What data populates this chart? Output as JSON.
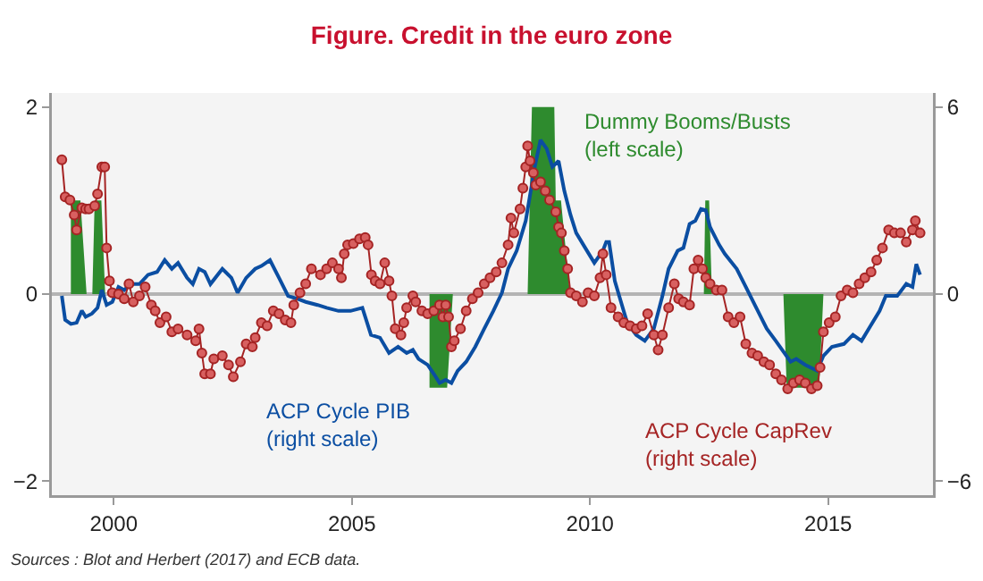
{
  "chart_data": {
    "type": "line",
    "title": "Figure. Credit in the euro zone",
    "annotations": [
      "Sources : Blot and Herbert (2017) and ECB data."
    ],
    "xlim": [
      1998.7,
      2017.2
    ],
    "xticks": [
      2000,
      2005,
      2010,
      2015
    ],
    "ylim": [
      -2.15,
      2.15
    ],
    "yticks": [
      -2,
      0,
      2
    ],
    "y2lim": [
      -6.45,
      6.45
    ],
    "y2ticks": [
      -6,
      0,
      6
    ],
    "grid": false,
    "legend": false,
    "ref_lines": [
      {
        "axis": "y",
        "value": 0,
        "color": "#b4b4b4"
      }
    ],
    "series": [
      {
        "name": "Dummy Booms/Busts\n(left scale)",
        "type": "area",
        "axis": "y",
        "color": "#2e8b2e",
        "marker": "none",
        "x": [
          1999.1,
          1999.1,
          1999.3,
          1999.43,
          1999.55,
          1999.6,
          1999.74,
          1999.82,
          2003,
          2006.63,
          2006.63,
          2007.0,
          2007.12,
          2008,
          2008.69,
          2008.78,
          2009.25,
          2009.28,
          2009.39,
          2009.58,
          2011,
          2012.39,
          2012.42,
          2012.5,
          2012.56,
          2013,
          2014.06,
          2014.13,
          2014.81,
          2014.9
        ],
        "values": [
          0,
          1,
          1,
          0,
          0,
          1,
          1,
          0,
          null,
          0,
          -1,
          -1,
          0,
          null,
          0,
          2,
          2,
          1,
          1,
          0,
          null,
          0,
          1,
          1,
          0,
          null,
          0,
          -1,
          -1,
          0
        ]
      },
      {
        "name": "ACP Cycle PIB\n(right scale)",
        "axis": "y2",
        "color": "#0b4ea2",
        "marker": "none",
        "x": [
          1998.91,
          1998.98,
          1999.1,
          1999.22,
          1999.33,
          1999.41,
          1999.54,
          1999.66,
          1999.75,
          1999.85,
          1999.97,
          2000.1,
          2000.22,
          2000.35,
          2000.54,
          2000.72,
          2000.91,
          2001.07,
          2001.22,
          2001.35,
          2001.54,
          2001.66,
          2001.79,
          2001.91,
          2002.03,
          2002.28,
          2002.47,
          2002.6,
          2002.78,
          2002.97,
          2003.1,
          2003.28,
          2003.47,
          2003.66,
          2003.85,
          2004.03,
          2004.28,
          2004.47,
          2004.72,
          2004.97,
          2005.22,
          2005.4,
          2005.59,
          2005.78,
          2005.97,
          2006.15,
          2006.28,
          2006.4,
          2006.59,
          2006.72,
          2006.84,
          2006.97,
          2007.09,
          2007.22,
          2007.4,
          2007.59,
          2007.78,
          2007.97,
          2008.15,
          2008.28,
          2008.46,
          2008.65,
          2008.84,
          2008.96,
          2009.09,
          2009.21,
          2009.34,
          2009.46,
          2009.59,
          2009.71,
          2009.9,
          2010.09,
          2010.27,
          2010.34,
          2010.4,
          2010.52,
          2010.65,
          2010.78,
          2010.97,
          2011.15,
          2011.34,
          2011.52,
          2011.65,
          2011.84,
          2011.96,
          2012.09,
          2012.21,
          2012.33,
          2012.43,
          2012.52,
          2012.71,
          2012.83,
          2013.08,
          2013.27,
          2013.46,
          2013.71,
          2013.9,
          2014.08,
          2014.21,
          2014.33,
          2014.52,
          2014.77,
          2014.9,
          2015.08,
          2015.33,
          2015.52,
          2015.7,
          2015.89,
          2016.08,
          2016.21,
          2016.45,
          2016.64,
          2016.77,
          2016.85,
          2016.93
        ],
        "values": [
          -0.06,
          -0.83,
          -0.96,
          -0.92,
          -0.53,
          -0.73,
          -0.63,
          -0.44,
          0.13,
          -0.35,
          -0.25,
          0.23,
          0.13,
          0.32,
          0.32,
          0.62,
          0.71,
          1.09,
          0.81,
          1.0,
          0.52,
          0.32,
          0.81,
          0.71,
          0.32,
          0.81,
          0.52,
          0.04,
          0.52,
          0.81,
          0.9,
          1.09,
          0.52,
          -0.06,
          -0.15,
          -0.25,
          -0.35,
          -0.44,
          -0.54,
          -0.54,
          -0.44,
          -1.31,
          -1.4,
          -1.89,
          -1.69,
          -1.89,
          -1.79,
          -2.08,
          -2.27,
          -2.56,
          -2.85,
          -2.75,
          -2.85,
          -2.46,
          -2.17,
          -1.69,
          -1.11,
          -0.54,
          0.04,
          0.81,
          1.39,
          2.35,
          4.08,
          4.94,
          4.66,
          4.08,
          4.27,
          3.31,
          2.54,
          1.96,
          1.48,
          1.0,
          1.39,
          1.67,
          1.67,
          0.42,
          -0.25,
          -0.92,
          -1.31,
          -1.5,
          -1.11,
          -0.06,
          0.81,
          1.39,
          1.48,
          2.25,
          2.35,
          2.73,
          2.69,
          2.15,
          1.58,
          1.29,
          0.81,
          0.23,
          -0.35,
          -1.11,
          -1.5,
          -1.89,
          -2.17,
          -2.08,
          -2.27,
          -2.46,
          -1.98,
          -1.69,
          -1.6,
          -1.31,
          -1.5,
          -1.02,
          -0.54,
          -0.06,
          -0.06,
          0.33,
          0.23,
          0.96,
          0.62
        ]
      },
      {
        "name": "ACP Cycle CapRev\n(right scale)",
        "axis": "y2",
        "color": "#a52424",
        "marker": "circle",
        "x": [
          1998.91,
          1998.98,
          1999.08,
          1999.17,
          1999.22,
          1999.33,
          1999.41,
          1999.48,
          1999.6,
          1999.66,
          1999.75,
          1999.81,
          1999.85,
          1999.91,
          1999.97,
          2000.1,
          2000.22,
          2000.32,
          2000.41,
          2000.54,
          2000.66,
          2000.79,
          2000.87,
          2000.97,
          2001.1,
          2001.22,
          2001.35,
          2001.54,
          2001.72,
          2001.79,
          2001.85,
          2001.91,
          2002.03,
          2002.1,
          2002.28,
          2002.41,
          2002.51,
          2002.66,
          2002.78,
          2002.91,
          2002.97,
          2003.1,
          2003.22,
          2003.35,
          2003.47,
          2003.6,
          2003.72,
          2003.78,
          2003.91,
          2004.03,
          2004.15,
          2004.34,
          2004.47,
          2004.59,
          2004.72,
          2004.78,
          2004.84,
          2004.91,
          2005.03,
          2005.16,
          2005.28,
          2005.34,
          2005.41,
          2005.49,
          2005.59,
          2005.69,
          2005.78,
          2005.84,
          2005.91,
          2006.03,
          2006.09,
          2006.15,
          2006.28,
          2006.34,
          2006.47,
          2006.59,
          2006.72,
          2006.84,
          2006.91,
          2006.97,
          2007.03,
          2007.09,
          2007.15,
          2007.28,
          2007.4,
          2007.53,
          2007.65,
          2007.78,
          2007.9,
          2008.03,
          2008.15,
          2008.28,
          2008.34,
          2008.4,
          2008.53,
          2008.59,
          2008.65,
          2008.69,
          2008.74,
          2008.81,
          2008.86,
          2008.96,
          2009.06,
          2009.15,
          2009.28,
          2009.34,
          2009.4,
          2009.46,
          2009.53,
          2009.59,
          2009.71,
          2009.84,
          2009.96,
          2010.09,
          2010.21,
          2010.27,
          2010.34,
          2010.44,
          2010.59,
          2010.71,
          2010.84,
          2010.97,
          2011.09,
          2011.21,
          2011.34,
          2011.43,
          2011.52,
          2011.65,
          2011.77,
          2011.86,
          2011.96,
          2012.09,
          2012.18,
          2012.27,
          2012.36,
          2012.43,
          2012.52,
          2012.65,
          2012.77,
          2012.9,
          2013.02,
          2013.15,
          2013.27,
          2013.4,
          2013.52,
          2013.65,
          2013.77,
          2013.9,
          2014.02,
          2014.15,
          2014.27,
          2014.4,
          2014.52,
          2014.65,
          2014.77,
          2014.83,
          2014.9,
          2015.02,
          2015.15,
          2015.27,
          2015.4,
          2015.52,
          2015.65,
          2015.77,
          2015.9,
          2016.02,
          2016.14,
          2016.27,
          2016.39,
          2016.52,
          2016.64,
          2016.77,
          2016.83,
          2016.93
        ],
        "values": [
          4.31,
          3.12,
          3.02,
          2.54,
          2.06,
          2.77,
          2.73,
          2.73,
          2.83,
          3.21,
          4.08,
          4.08,
          1.48,
          0.42,
          0.04,
          0.0,
          -0.15,
          0.33,
          -0.25,
          -0.06,
          0.23,
          -0.35,
          -0.54,
          -0.92,
          -0.73,
          -1.21,
          -1.12,
          -1.31,
          -1.5,
          -1.12,
          -1.89,
          -2.56,
          -2.56,
          -2.08,
          -1.98,
          -2.27,
          -2.65,
          -2.17,
          -1.6,
          -1.69,
          -1.4,
          -0.92,
          -1.02,
          -0.54,
          -0.63,
          -0.83,
          -0.92,
          -0.35,
          0.04,
          0.33,
          0.81,
          0.62,
          0.81,
          1.0,
          0.81,
          0.52,
          1.29,
          1.58,
          1.62,
          1.77,
          1.81,
          1.58,
          0.62,
          0.42,
          0.33,
          1.0,
          0.42,
          -0.06,
          -1.11,
          -1.31,
          -0.92,
          -0.44,
          -0.06,
          -0.25,
          -0.54,
          -0.63,
          -0.54,
          -0.35,
          -0.73,
          -0.35,
          -0.73,
          -1.69,
          -1.5,
          -1.11,
          -0.54,
          -0.15,
          0.04,
          0.33,
          0.52,
          0.71,
          1.0,
          1.58,
          2.44,
          1.96,
          2.73,
          3.4,
          4.08,
          4.75,
          4.27,
          3.89,
          3.5,
          3.6,
          3.31,
          3.02,
          2.64,
          2.15,
          1.96,
          1.39,
          0.81,
          0.04,
          -0.06,
          -0.25,
          0.04,
          -0.06,
          0.52,
          1.29,
          0.62,
          -0.44,
          -0.73,
          -0.92,
          -1.02,
          -1.11,
          -1.02,
          -0.63,
          -1.31,
          -1.79,
          -1.31,
          -0.44,
          0.33,
          -0.15,
          -0.25,
          -0.35,
          0.81,
          1.09,
          0.81,
          0.52,
          0.33,
          0.13,
          0.13,
          -0.73,
          -0.92,
          -0.73,
          -1.6,
          -1.89,
          -1.98,
          -2.17,
          -2.27,
          -2.56,
          -2.75,
          -3.04,
          -2.85,
          -2.75,
          -2.85,
          -3.04,
          -2.94,
          -2.35,
          -1.21,
          -0.92,
          -0.73,
          -0.06,
          0.13,
          0.04,
          0.33,
          0.52,
          0.71,
          1.09,
          1.48,
          2.06,
          1.96,
          1.96,
          1.67,
          2.06,
          2.35,
          1.96
        ]
      }
    ]
  }
}
